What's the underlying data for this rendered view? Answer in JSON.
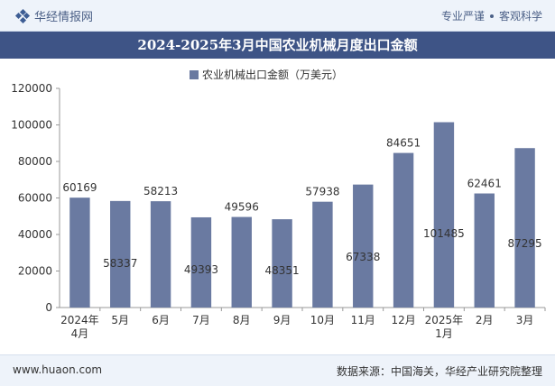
{
  "header": {
    "brand": "华经情报网",
    "tagline_1": "专业严谨",
    "tagline_2": "客观科学"
  },
  "title": "2024-2025年3月中国农业机械月度出口金额",
  "footer": {
    "website": "www.huaon.com",
    "source": "数据来源：中国海关，华经产业研究院整理"
  },
  "colors": {
    "bar": "#6a7aa1",
    "title_bg": "#3e5486",
    "band_bg": "#eef3fa"
  },
  "chart_data": {
    "type": "bar",
    "categories": [
      "2024年\n4月",
      "5月",
      "6月",
      "7月",
      "8月",
      "9月",
      "10月",
      "11月",
      "12月",
      "2025年\n1月",
      "2月",
      "3月"
    ],
    "series": [
      {
        "name": "农业机械出口金额（万美元）",
        "values": [
          60169,
          58337,
          58213,
          49393,
          49596,
          48351,
          57938,
          67338,
          84651,
          101485,
          62461,
          87295
        ]
      }
    ],
    "label_positions": [
      "above",
      "inside",
      "above",
      "inside",
      "above",
      "inside",
      "above",
      "inside",
      "above",
      "inside",
      "above",
      "inside"
    ],
    "ylim": [
      0,
      120000
    ],
    "yticks": [
      0,
      20000,
      40000,
      60000,
      80000,
      100000,
      120000
    ],
    "legend_position": "top-center",
    "grid": false
  }
}
